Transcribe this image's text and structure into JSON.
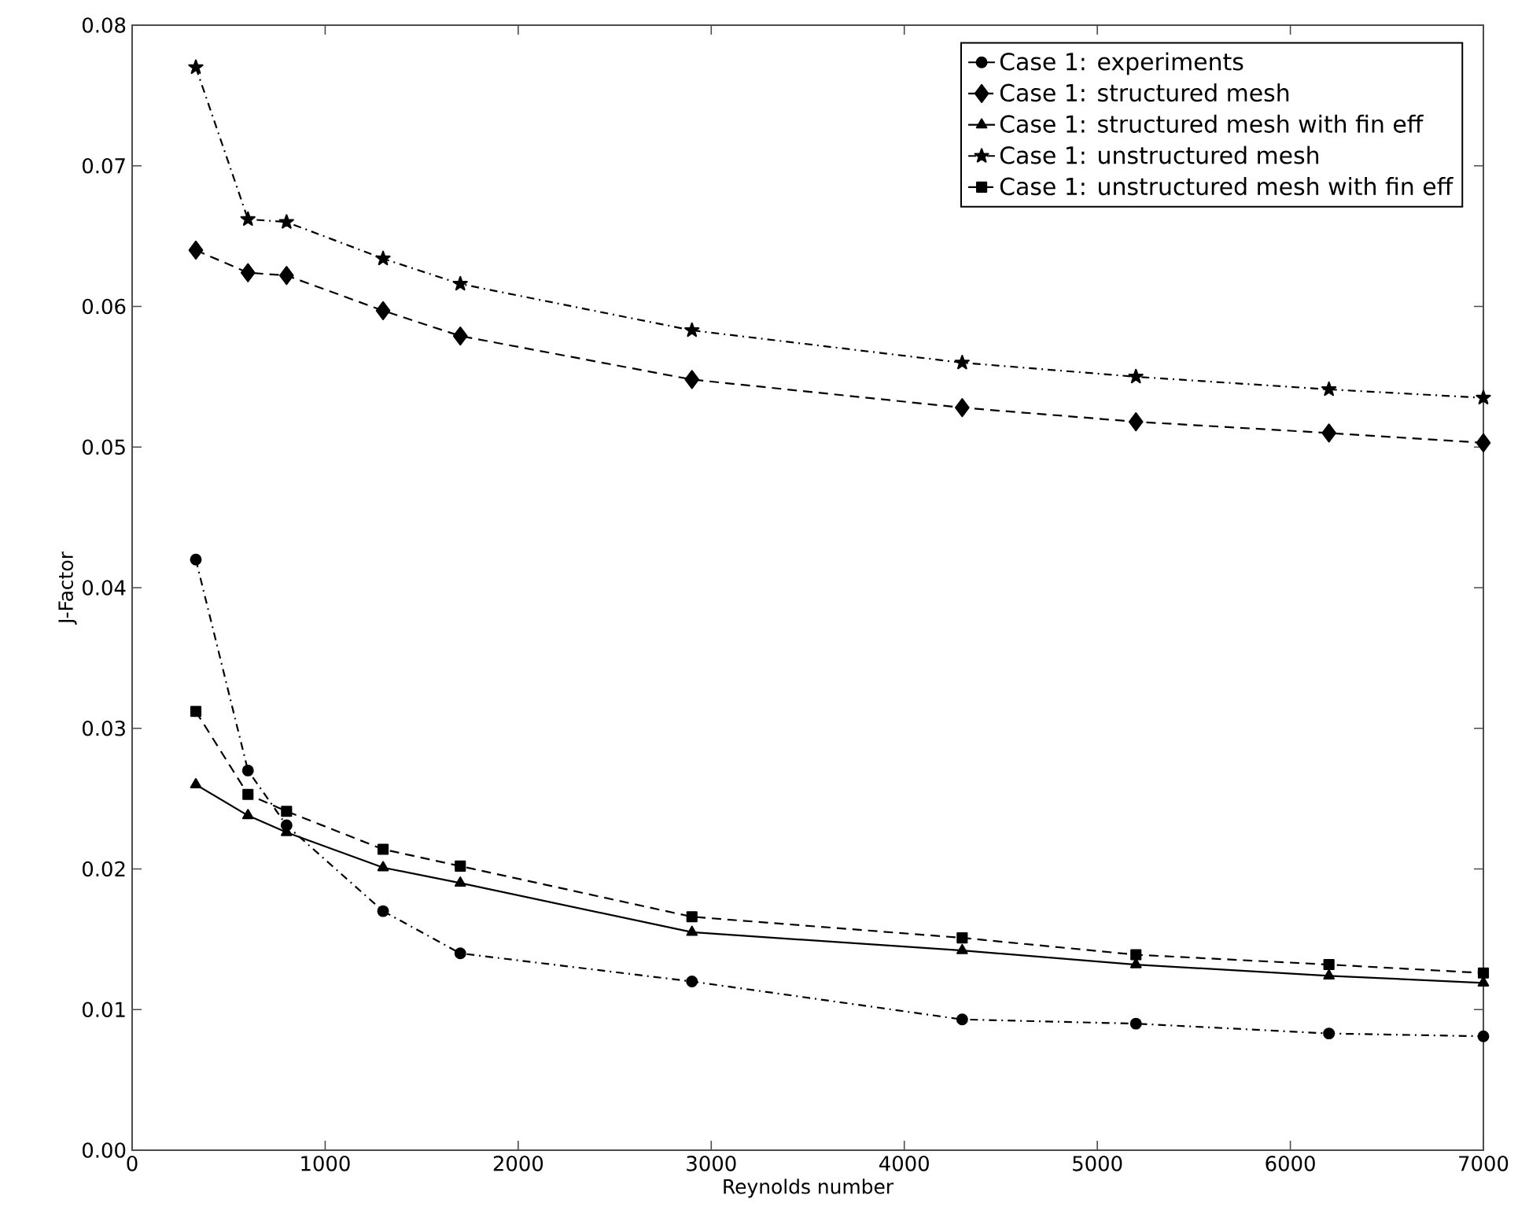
{
  "chart_data": {
    "type": "line",
    "xlabel": "Reynolds number",
    "ylabel": "J-Factor",
    "xlim": [
      0,
      7000
    ],
    "ylim": [
      0,
      0.08
    ],
    "xticks": [
      0,
      1000,
      2000,
      3000,
      4000,
      5000,
      6000,
      7000
    ],
    "yticks": [
      {
        "value": 0,
        "label": "0.00"
      },
      {
        "value": 0.01,
        "label": "0.01"
      },
      {
        "value": 0.02,
        "label": "0.02"
      },
      {
        "value": 0.03,
        "label": "0.03"
      },
      {
        "value": 0.04,
        "label": "0.04"
      },
      {
        "value": 0.05,
        "label": "0.05"
      },
      {
        "value": 0.06,
        "label": "0.06"
      },
      {
        "value": 0.07,
        "label": "0.07"
      },
      {
        "value": 0.08,
        "label": "0.08"
      }
    ],
    "x": [
      330,
      600,
      800,
      1300,
      1700,
      2900,
      4300,
      5200,
      6200,
      7000
    ],
    "legend": "top right",
    "grid": false,
    "series": [
      {
        "name": "Case 1: experiments",
        "color": "#000000",
        "marker": "circle",
        "line_style": "dashdot",
        "values": [
          0.042,
          0.027,
          0.0231,
          0.017,
          0.014,
          0.012,
          0.0093,
          0.009,
          0.0083,
          0.0081
        ]
      },
      {
        "name": "Case 1: structured mesh",
        "color": "#000000",
        "marker": "diamond",
        "line_style": "dashed",
        "values": [
          0.064,
          0.0624,
          0.0622,
          0.0597,
          0.0579,
          0.0548,
          0.0528,
          0.0518,
          0.051,
          0.0503
        ]
      },
      {
        "name": "Case 1: structured mesh with fin eff",
        "color": "#000000",
        "marker": "triangle",
        "line_style": "solid",
        "values": [
          0.026,
          0.0238,
          0.0226,
          0.0201,
          0.019,
          0.0155,
          0.0142,
          0.0132,
          0.0124,
          0.0119
        ]
      },
      {
        "name": "Case 1: unstructured mesh",
        "color": "#000000",
        "marker": "star",
        "line_style": "dashdot",
        "values": [
          0.077,
          0.0662,
          0.066,
          0.0634,
          0.0616,
          0.0583,
          0.056,
          0.055,
          0.0541,
          0.0535
        ]
      },
      {
        "name": "Case 1: unstructured mesh with fin eff",
        "color": "#000000",
        "marker": "square",
        "line_style": "dashed",
        "values": [
          0.0312,
          0.0253,
          0.0241,
          0.0214,
          0.0202,
          0.0166,
          0.0151,
          0.0139,
          0.0132,
          0.0126
        ]
      }
    ]
  }
}
